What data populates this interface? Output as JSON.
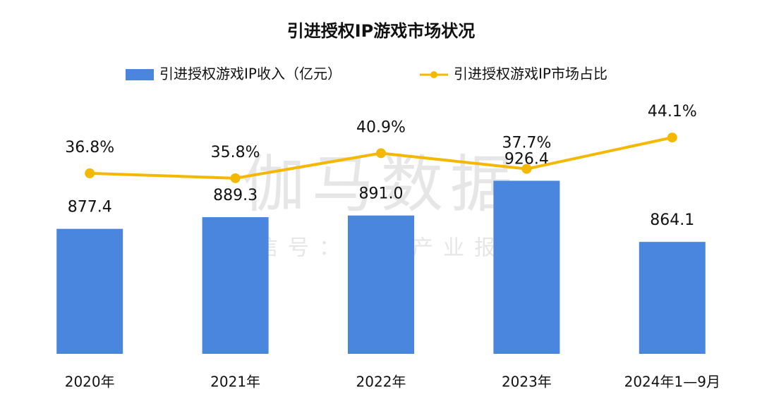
{
  "chart_data": {
    "type": "bar-line",
    "title": "引进授权IP游戏市场状况",
    "watermark": [
      "伽马数据",
      "微信号：游戏产业报告"
    ],
    "categories": [
      "2020年",
      "2021年",
      "2022年",
      "2023年",
      "2024年1—9月"
    ],
    "series": [
      {
        "name": "引进授权游戏IP收入（亿元）",
        "type": "bar",
        "color": "#4a86dd",
        "values": [
          877.4,
          889.3,
          891.0,
          926.4,
          864.1
        ],
        "value_labels": [
          "877.4",
          "889.3",
          "891.0",
          "926.4",
          "864.1"
        ]
      },
      {
        "name": "引进授权游戏IP市场占比",
        "type": "line",
        "axis": "y2",
        "color": "#f5b800",
        "values": [
          36.8,
          35.8,
          40.9,
          37.7,
          44.1
        ],
        "value_labels": [
          "36.8%",
          "35.8%",
          "40.9%",
          "37.7%",
          "44.1%"
        ]
      }
    ],
    "ylim": [
      750,
      1000
    ],
    "y2lim": [
      0,
      50
    ],
    "grid": false,
    "legend": "top"
  }
}
